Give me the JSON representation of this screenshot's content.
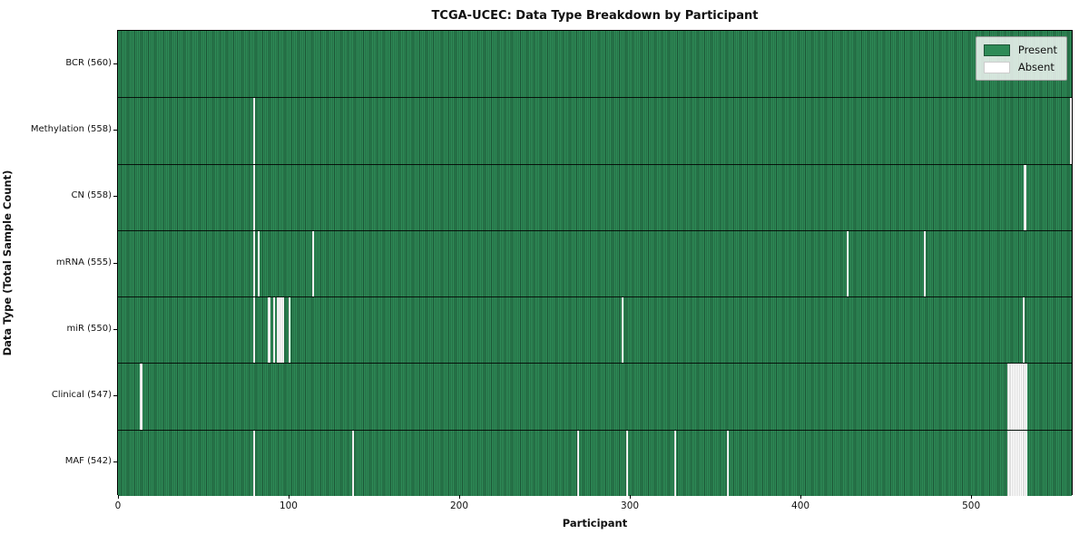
{
  "title": "TCGA-UCEC: Data Type Breakdown by Participant",
  "xlabel": "Participant",
  "ylabel": "Data Type (Total Sample Count)",
  "legend": {
    "present_label": "Present",
    "absent_label": "Absent",
    "position": "upper right"
  },
  "colors": {
    "present": "#2e8b57",
    "present_edge": "#1c5435",
    "absent": "#ffffff",
    "absent_edge": "#bdbdbd",
    "row_separator": "#151515",
    "legend_bg": "rgba(255,255,255,0.8)"
  },
  "chart_data": {
    "type": "heatmap",
    "title": "TCGA-UCEC: Data Type Breakdown by Participant",
    "xlabel": "Participant",
    "ylabel": "Data Type (Total Sample Count)",
    "n_participants": 560,
    "x_range": [
      0,
      559
    ],
    "x_ticks": [
      0,
      100,
      200,
      300,
      400,
      500
    ],
    "legend_entries": [
      "Present",
      "Absent"
    ],
    "legend_position": "upper right",
    "grid": false,
    "rows": [
      {
        "label": "BCR",
        "count": 560,
        "absent_participants": []
      },
      {
        "label": "Methylation",
        "count": 558,
        "absent_participants": [
          79,
          558
        ]
      },
      {
        "label": "CN",
        "count": 558,
        "absent_participants": [
          79,
          531
        ]
      },
      {
        "label": "mRNA",
        "count": 555,
        "absent_participants": [
          79,
          82,
          114,
          427,
          472
        ]
      },
      {
        "label": "miR",
        "count": 550,
        "absent_participants": [
          79,
          88,
          91,
          93,
          94,
          95,
          96,
          100,
          295,
          530
        ]
      },
      {
        "label": "Clinical",
        "count": 547,
        "absent_participants": [
          13,
          521,
          522,
          523,
          524,
          525,
          526,
          527,
          528,
          529,
          530,
          531,
          532
        ]
      },
      {
        "label": "MAF",
        "count": 542,
        "absent_participants": [
          79,
          137,
          269,
          298,
          326,
          357,
          521,
          522,
          523,
          524,
          525,
          526,
          527,
          528,
          529,
          530,
          531,
          532
        ]
      }
    ]
  }
}
